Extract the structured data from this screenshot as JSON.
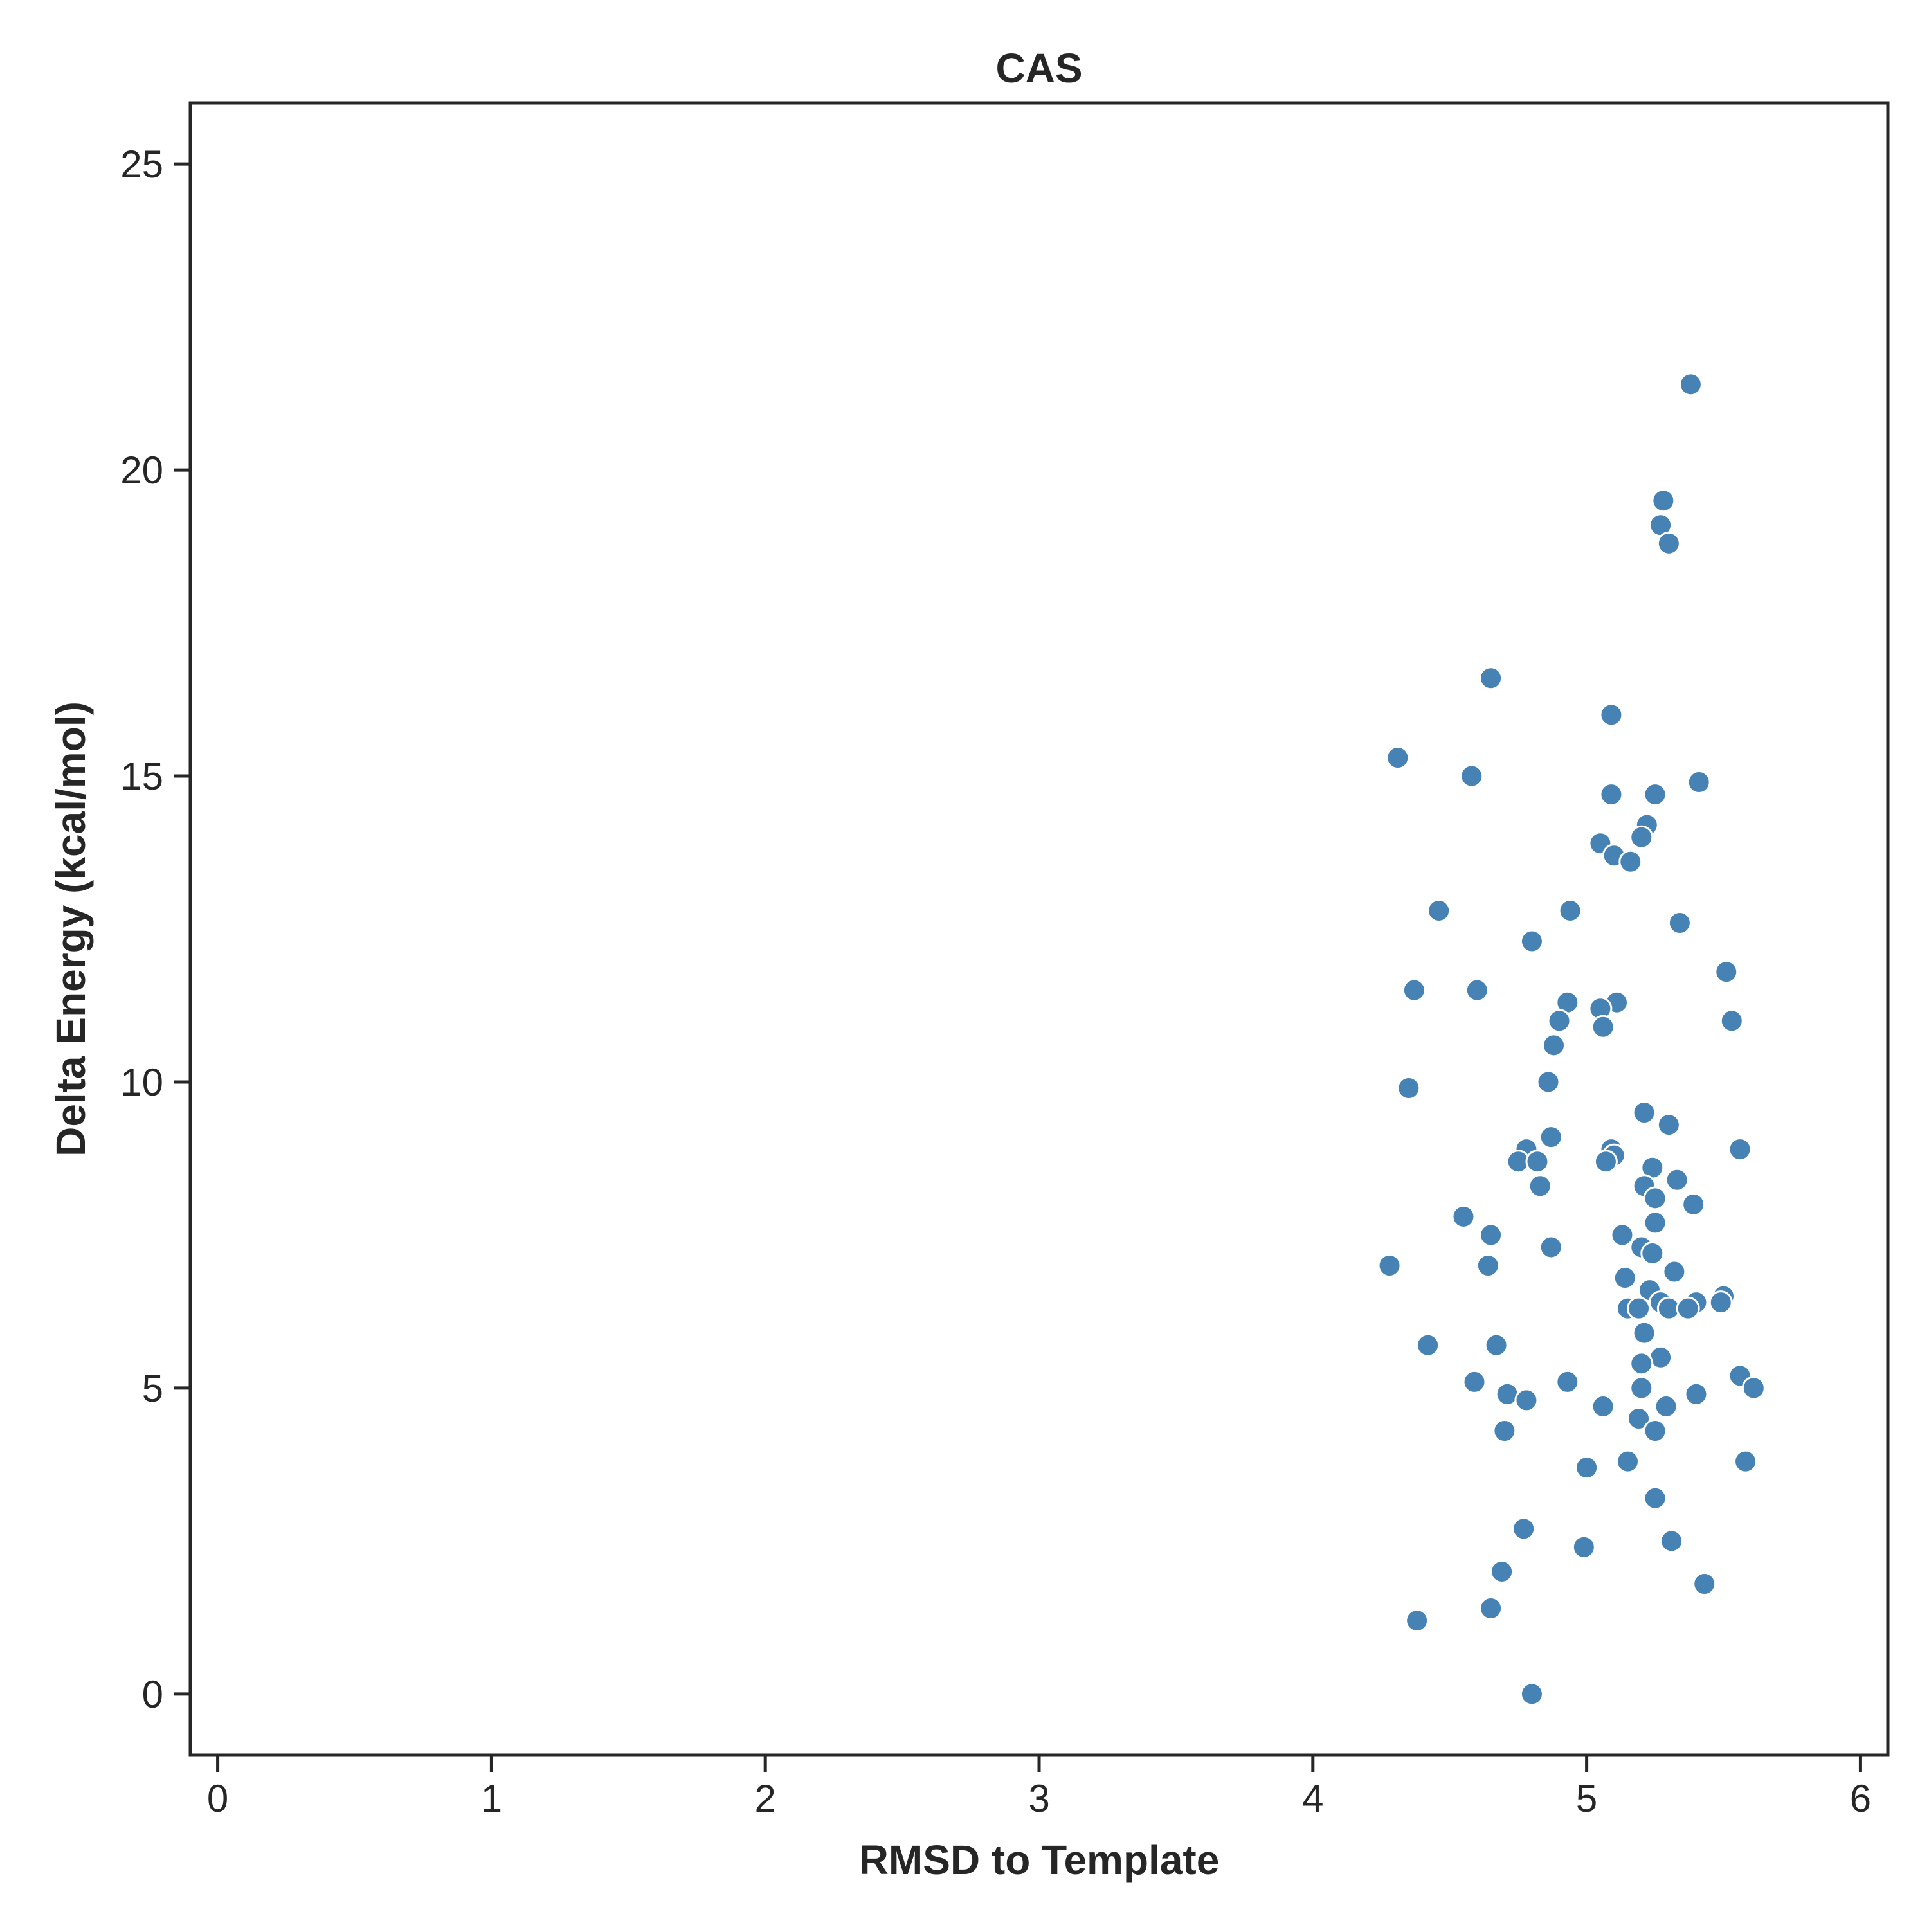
{
  "chart_data": {
    "type": "scatter",
    "title": "CAS",
    "xlabel": "RMSD to Template",
    "ylabel": "Delta Energy (kcal/mol)",
    "xlim": [
      -0.1,
      6.1
    ],
    "ylim": [
      -1.0,
      26.0
    ],
    "xticks": [
      0,
      1,
      2,
      3,
      4,
      5,
      6
    ],
    "yticks": [
      0,
      5,
      10,
      15,
      20,
      25
    ],
    "grid": false,
    "marker_color": "#4682b4",
    "marker_edge_color": "#ffffff",
    "series": [
      {
        "x": [
          5.38,
          5.28,
          5.27,
          5.3,
          4.65,
          5.09,
          4.31,
          4.58,
          5.41,
          5.09,
          5.25,
          5.22,
          5.2,
          5.05,
          5.1,
          5.16,
          4.46,
          4.94,
          5.34,
          4.8,
          5.51,
          4.37,
          4.6,
          5.11,
          4.93,
          5.05,
          5.53,
          4.9,
          5.06,
          4.88,
          4.86,
          4.35,
          5.21,
          5.3,
          4.87,
          4.78,
          5.56,
          5.09,
          5.1,
          4.75,
          4.82,
          5.07,
          5.24,
          5.33,
          5.21,
          4.83,
          5.25,
          5.39,
          5.25,
          4.55,
          4.65,
          5.13,
          5.2,
          4.87,
          5.24,
          4.28,
          4.64,
          5.32,
          5.14,
          5.23,
          5.5,
          5.49,
          5.27,
          5.4,
          5.15,
          5.19,
          5.3,
          5.37,
          5.21,
          4.42,
          4.67,
          5.27,
          5.2,
          4.59,
          4.93,
          5.56,
          5.2,
          5.61,
          4.71,
          5.4,
          4.78,
          5.06,
          5.29,
          5.19,
          4.7,
          5.25,
          5.58,
          5.15,
          5.0,
          5.25,
          4.77,
          5.31,
          4.99,
          4.69,
          5.43,
          4.65,
          4.38,
          4.8
        ],
        "y": [
          21.4,
          19.5,
          19.1,
          18.8,
          16.6,
          16.0,
          15.3,
          15.0,
          14.9,
          14.7,
          14.7,
          14.2,
          14.0,
          13.9,
          13.7,
          13.6,
          12.8,
          12.8,
          12.6,
          12.3,
          11.8,
          11.5,
          11.5,
          11.3,
          11.3,
          11.2,
          11.0,
          11.0,
          10.9,
          10.6,
          10.0,
          9.9,
          9.5,
          9.3,
          9.1,
          8.9,
          8.9,
          8.9,
          8.8,
          8.7,
          8.7,
          8.7,
          8.6,
          8.4,
          8.3,
          8.3,
          8.1,
          8.0,
          7.7,
          7.8,
          7.5,
          7.5,
          7.3,
          7.3,
          7.2,
          7.0,
          7.0,
          6.9,
          6.8,
          6.6,
          6.5,
          6.4,
          6.4,
          6.4,
          6.3,
          6.3,
          6.3,
          6.3,
          5.9,
          5.7,
          5.7,
          5.5,
          5.4,
          5.1,
          5.1,
          5.2,
          5.0,
          5.0,
          4.9,
          4.9,
          4.8,
          4.7,
          4.7,
          4.5,
          4.3,
          4.3,
          3.8,
          3.8,
          3.7,
          3.2,
          2.7,
          2.5,
          2.4,
          2.0,
          1.8,
          1.4,
          1.2,
          0.0
        ]
      }
    ]
  }
}
